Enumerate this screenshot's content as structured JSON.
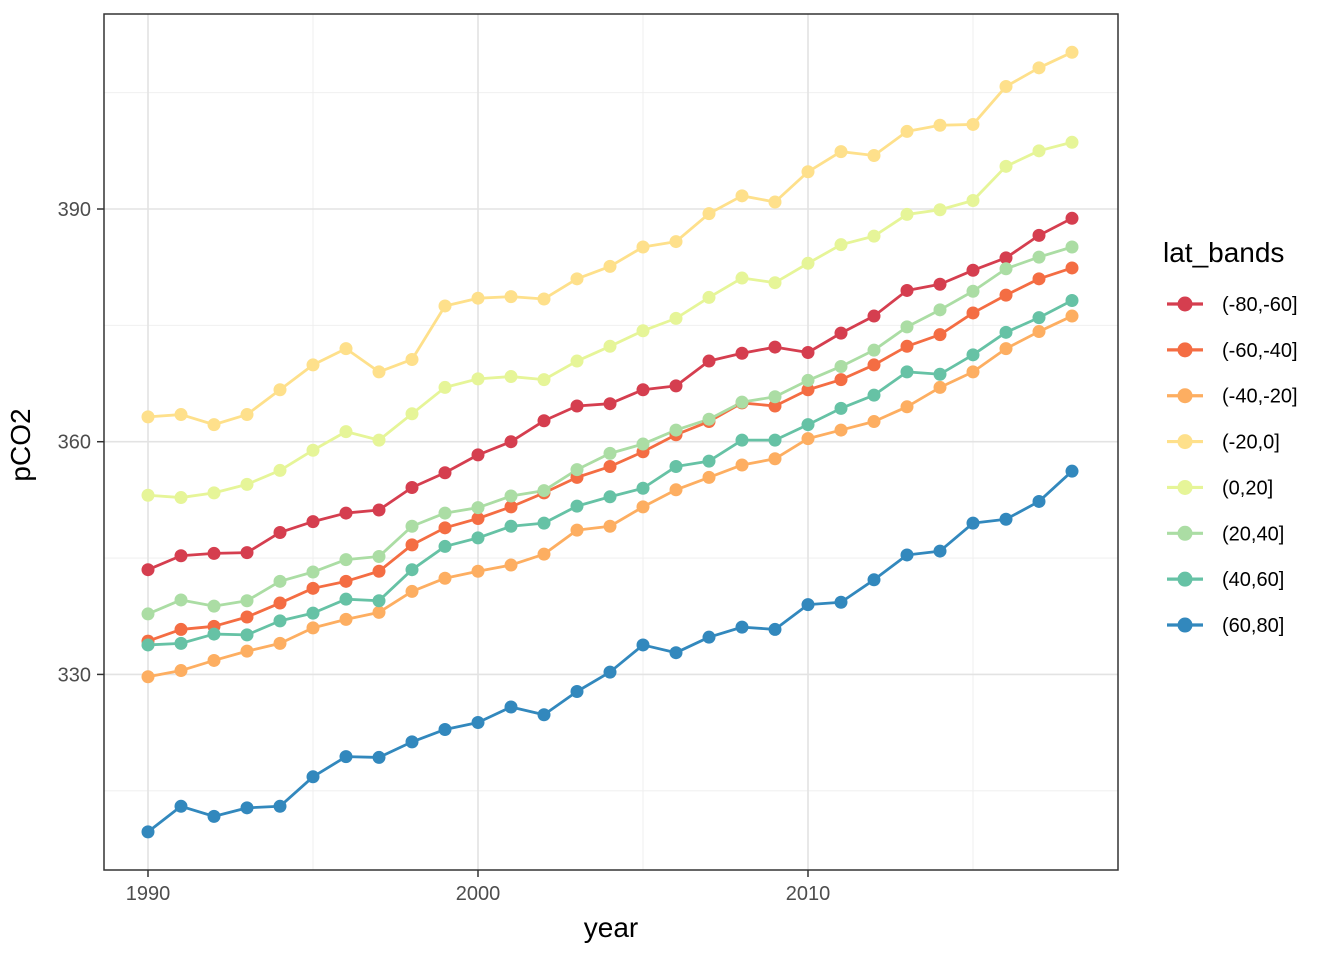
{
  "figure": {
    "background": "#ffffff"
  },
  "colors": {
    "axis_text": "#4d4d4d",
    "axis_title": "#000000",
    "legend_text": "#000000",
    "panel_border": "#333333",
    "grid_major": "#e3e3e3",
    "grid_minor": "#eeeeee",
    "panel_background": "#ffffff"
  },
  "chart_data": {
    "type": "line",
    "title": "",
    "xlabel": "year",
    "ylabel": "pCO2",
    "legend_title": "lat_bands",
    "legend_position": "right",
    "grid": true,
    "x": [
      1990,
      1991,
      1992,
      1993,
      1994,
      1995,
      1996,
      1997,
      1998,
      1999,
      2000,
      2001,
      2002,
      2003,
      2004,
      2005,
      2006,
      2007,
      2008,
      2009,
      2010,
      2011,
      2012,
      2013,
      2014,
      2015,
      2016,
      2017,
      2018
    ],
    "x_ticks": [
      1990,
      2000,
      2010
    ],
    "x_minor_ticks": [
      1995,
      2005,
      2015
    ],
    "y_ticks": [
      330,
      360,
      390
    ],
    "y_minor_ticks": [
      315,
      345,
      375,
      405
    ],
    "xlim": [
      1988.67,
      2019.39
    ],
    "ylim": [
      304.8,
      415.1
    ],
    "series": [
      {
        "name": "(-80,-60]",
        "color": "#d53e4f",
        "values": [
          343.5,
          345.3,
          345.6,
          345.7,
          348.3,
          349.7,
          350.8,
          351.2,
          354.1,
          356.0,
          358.3,
          360.0,
          362.7,
          364.6,
          364.9,
          366.7,
          367.2,
          370.4,
          371.4,
          372.2,
          371.5,
          374.0,
          376.2,
          379.5,
          380.3,
          382.1,
          383.7,
          386.6,
          388.8
        ]
      },
      {
        "name": "(-60,-40]",
        "color": "#f46d43",
        "values": [
          334.3,
          335.8,
          336.2,
          337.4,
          339.2,
          341.1,
          342.0,
          343.3,
          346.7,
          348.9,
          350.1,
          351.6,
          353.4,
          355.4,
          356.8,
          358.7,
          360.9,
          362.6,
          365.0,
          364.6,
          366.7,
          368.0,
          369.9,
          372.3,
          373.8,
          376.6,
          378.9,
          381.0,
          382.4
        ]
      },
      {
        "name": "(-40,-20]",
        "color": "#fdae61",
        "values": [
          329.7,
          330.5,
          331.8,
          333.0,
          334.0,
          336.0,
          337.1,
          338.0,
          340.7,
          342.4,
          343.3,
          344.1,
          345.5,
          348.6,
          349.1,
          351.6,
          353.8,
          355.4,
          357.0,
          357.8,
          360.4,
          361.5,
          362.6,
          364.5,
          367.0,
          369.0,
          372.0,
          374.2,
          376.2
        ]
      },
      {
        "name": "(-20,0]",
        "color": "#fee08b",
        "values": [
          363.2,
          363.5,
          362.2,
          363.5,
          366.7,
          369.9,
          372.0,
          369.0,
          370.6,
          377.5,
          378.5,
          378.7,
          378.4,
          381.0,
          382.6,
          385.1,
          385.8,
          389.4,
          391.7,
          390.9,
          394.8,
          397.4,
          396.9,
          400.0,
          400.8,
          400.9,
          405.8,
          408.2,
          410.2
        ]
      },
      {
        "name": "(0,20]",
        "color": "#e6f598",
        "values": [
          353.1,
          352.8,
          353.4,
          354.5,
          356.3,
          358.9,
          361.3,
          360.2,
          363.6,
          367.0,
          368.1,
          368.4,
          368.0,
          370.4,
          372.3,
          374.3,
          375.9,
          378.6,
          381.1,
          380.5,
          383.0,
          385.4,
          386.5,
          389.3,
          389.9,
          391.1,
          395.5,
          397.5,
          398.6
        ]
      },
      {
        "name": "(20,40]",
        "color": "#abdda4",
        "values": [
          337.8,
          339.6,
          338.8,
          339.5,
          342.0,
          343.2,
          344.8,
          345.2,
          349.1,
          350.8,
          351.5,
          353.0,
          353.7,
          356.4,
          358.5,
          359.7,
          361.5,
          362.9,
          365.1,
          365.8,
          367.9,
          369.7,
          371.8,
          374.8,
          377.0,
          379.4,
          382.3,
          383.8,
          385.1
        ]
      },
      {
        "name": "(40,60]",
        "color": "#66c2a5",
        "values": [
          333.8,
          334.0,
          335.2,
          335.1,
          336.9,
          337.9,
          339.7,
          339.5,
          343.5,
          346.5,
          347.6,
          349.1,
          349.5,
          351.7,
          352.9,
          354.0,
          356.8,
          357.5,
          360.2,
          360.2,
          362.2,
          364.3,
          366.0,
          369.0,
          368.7,
          371.2,
          374.1,
          376.0,
          378.2
        ]
      },
      {
        "name": "(60,80]",
        "color": "#3288bd",
        "values": [
          309.7,
          313.0,
          311.7,
          312.8,
          313.0,
          316.8,
          319.4,
          319.3,
          321.3,
          322.9,
          323.8,
          325.8,
          324.8,
          327.8,
          330.3,
          333.8,
          332.8,
          334.8,
          336.1,
          335.8,
          339.0,
          339.3,
          342.2,
          345.4,
          345.9,
          349.5,
          350.0,
          352.3,
          356.2
        ]
      }
    ]
  }
}
